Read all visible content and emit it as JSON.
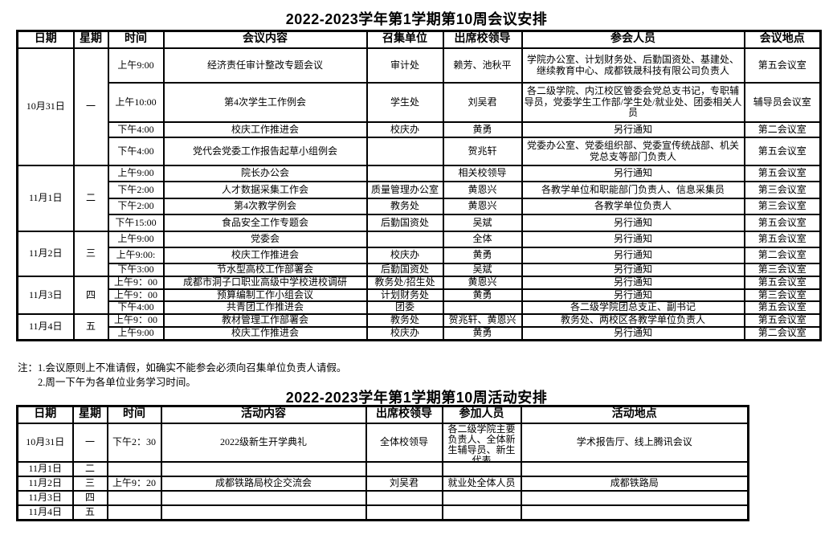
{
  "table1": {
    "title": "2022-2023学年第1学期第10周会议安排",
    "headers": [
      "日期",
      "星期",
      "时间",
      "会议内容",
      "召集单位",
      "出席校领导",
      "参会人员",
      "会议地点"
    ],
    "groups": [
      {
        "date": "10月31日",
        "weekday": "一",
        "rows": [
          {
            "time": "上午9:00",
            "content": "经济责任审计整改专题会议",
            "convener": "审计处",
            "leaders": "赖芳、池秋平",
            "participants": "学院办公室、计划财务处、后勤国资处、基建处、继续教育中心、成都铁晟科技有限公司负责人",
            "location": "第五会议室"
          },
          {
            "time": "上午10:00",
            "content": "第4次学生工作例会",
            "convener": "学生处",
            "leaders": "刘吴君",
            "participants": "各二级学院、内江校区管委会党总支书记，专职辅导员，党委学生工作部/学生处/就业处、团委相关人员",
            "location": "辅导员会议室"
          },
          {
            "time": "下午4:00",
            "content": "校庆工作推进会",
            "convener": "校庆办",
            "leaders": "黄勇",
            "participants": "另行通知",
            "location": "第二会议室"
          },
          {
            "time": "下午4:00",
            "content": "党代会党委工作报告起草小组例会",
            "convener": "",
            "leaders": "贺兆轩",
            "participants": "党委办公室、党委组织部、党委宣传统战部、机关党总支等部门负责人",
            "location": "第五会议室"
          }
        ]
      },
      {
        "date": "11月1日",
        "weekday": "二",
        "rows": [
          {
            "time": "上午9:00",
            "content": "院长办公会",
            "convener": "",
            "leaders": "相关校领导",
            "participants": "另行通知",
            "location": "第五会议室"
          },
          {
            "time": "下午2:00",
            "content": "人才数据采集工作会",
            "convener": "质量管理办公室",
            "leaders": "黄恩兴",
            "participants": "各教学单位和职能部门负责人、信息采集员",
            "location": "第三会议室"
          },
          {
            "time": "下午2:00",
            "content": "第4次教学例会",
            "convener": "教务处",
            "leaders": "黄恩兴",
            "participants": "各教学单位负责人",
            "location": "第三会议室"
          },
          {
            "time": "下午15:00",
            "content": "食品安全工作专题会",
            "convener": "后勤国资处",
            "leaders": "吴斌",
            "participants": "另行通知",
            "location": "第五会议室"
          }
        ]
      },
      {
        "date": "11月2日",
        "weekday": "三",
        "rows": [
          {
            "time": "上午9:00",
            "content": "党委会",
            "convener": "",
            "leaders": "全体",
            "participants": "另行通知",
            "location": "第五会议室"
          },
          {
            "time": "上午9:00:",
            "content": "校庆工作推进会",
            "convener": "校庆办",
            "leaders": "黄勇",
            "participants": "另行通知",
            "location": "第二会议室"
          },
          {
            "time": "下午3:00",
            "content": "节水型高校工作部署会",
            "convener": "后勤国资处",
            "leaders": "吴斌",
            "participants": "另行通知",
            "location": "第三会议室"
          }
        ]
      },
      {
        "date": "11月3日",
        "weekday": "四",
        "rows": [
          {
            "time": "上午9：00",
            "content": "成都市洞子口职业高级中学校进校调研",
            "convener": "教务处/招生处",
            "leaders": "黄恩兴",
            "participants": "另行通知",
            "location": "第五会议室"
          },
          {
            "time": "上午9：00",
            "content": "预算编制工作小组会议",
            "convener": "计划财务处",
            "leaders": "黄勇",
            "participants": "另行通知",
            "location": "第三会议室"
          },
          {
            "time": "下午4:00",
            "content": "共青团工作推进会",
            "convener": "团委",
            "leaders": "",
            "participants": "各二级学院团总支正、副书记",
            "location": "第五会议室"
          }
        ]
      },
      {
        "date": "11月4日",
        "weekday": "五",
        "rows": [
          {
            "time": "上午9：00",
            "content": "教材管理工作部署会",
            "convener": "教务处",
            "leaders": "贺兆轩、黄恩兴",
            "participants": "教务处、两校区各教学单位负责人",
            "location": "第五会议室"
          },
          {
            "time": "上午9:00",
            "content": "校庆工作推进会",
            "convener": "校庆办",
            "leaders": "黄勇",
            "participants": "另行通知",
            "location": "第二会议室"
          }
        ]
      }
    ]
  },
  "notes": [
    "注：1.会议原则上不准请假，如确实不能参会必须向召集单位负责人请假。",
    "2.周一下午为各单位业务学习时间。"
  ],
  "table2": {
    "title": "2022-2023学年第1学期第10周活动安排",
    "headers": [
      "日期",
      "星期",
      "时间",
      "活动内容",
      "出席校领导",
      "参加人员",
      "活动地点"
    ],
    "rows": [
      {
        "date": "10月31日",
        "weekday": "一",
        "time": "下午2：30",
        "content": "2022级新生开学典礼",
        "leaders": "全体校领导",
        "participants": "各二级学院主要负责人、全体新生辅导员、新生代表",
        "location": "学术报告厅、线上腾讯会议"
      },
      {
        "date": "11月1日",
        "weekday": "二",
        "time": "",
        "content": "",
        "leaders": "",
        "participants": "",
        "location": ""
      },
      {
        "date": "11月2日",
        "weekday": "三",
        "time": "上午9：20",
        "content": "成都铁路局校企交流会",
        "leaders": "刘吴君",
        "participants": "就业处全体人员",
        "location": "成都铁路局"
      },
      {
        "date": "11月3日",
        "weekday": "四",
        "time": "",
        "content": "",
        "leaders": "",
        "participants": "",
        "location": ""
      },
      {
        "date": "11月4日",
        "weekday": "五",
        "time": "",
        "content": "",
        "leaders": "",
        "participants": "",
        "location": ""
      }
    ]
  }
}
